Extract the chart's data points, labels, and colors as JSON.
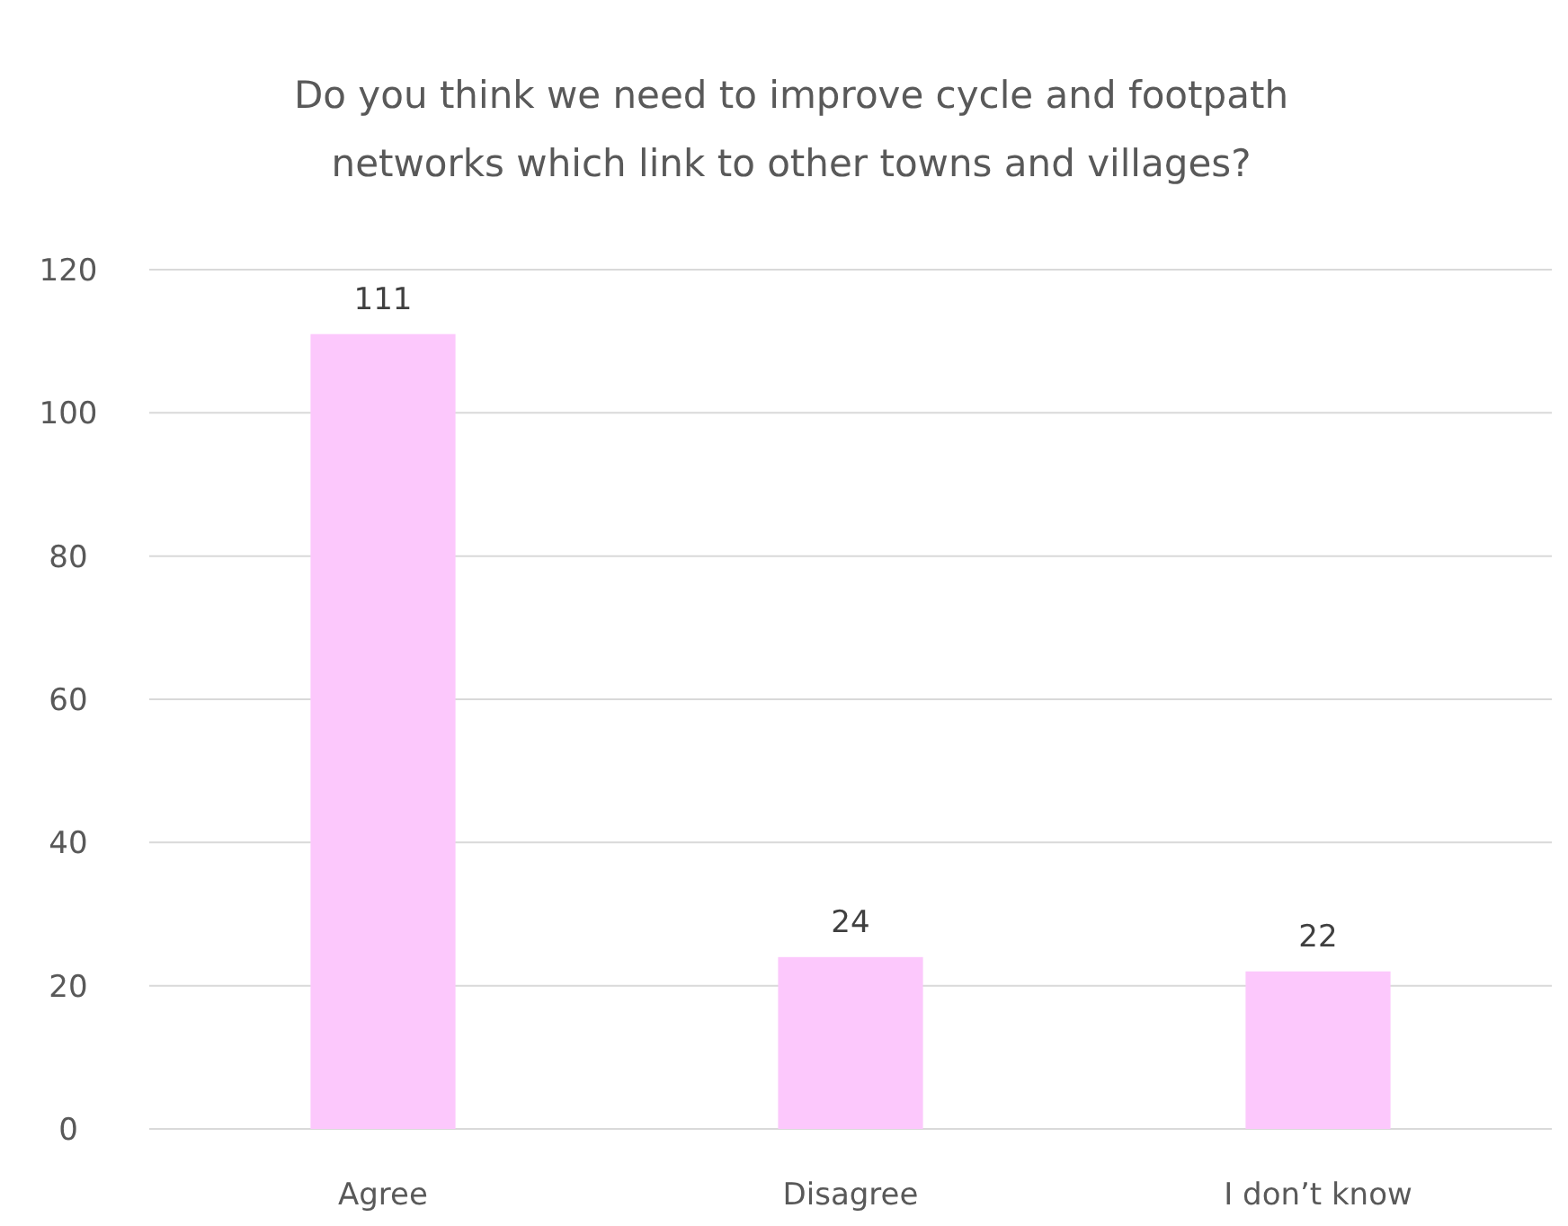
{
  "chart_data": {
    "type": "bar",
    "title": "Do you think we need to improve cycle and footpath networks which link to other towns and villages?",
    "categories": [
      "Agree",
      "Disagree",
      "I don’t know"
    ],
    "values": [
      111,
      24,
      22
    ],
    "color": "#fcc8fc",
    "ylim": [
      0,
      120
    ],
    "yticks": [
      0,
      20,
      40,
      60,
      80,
      100,
      120
    ],
    "grid": "y",
    "data_labels": true
  }
}
